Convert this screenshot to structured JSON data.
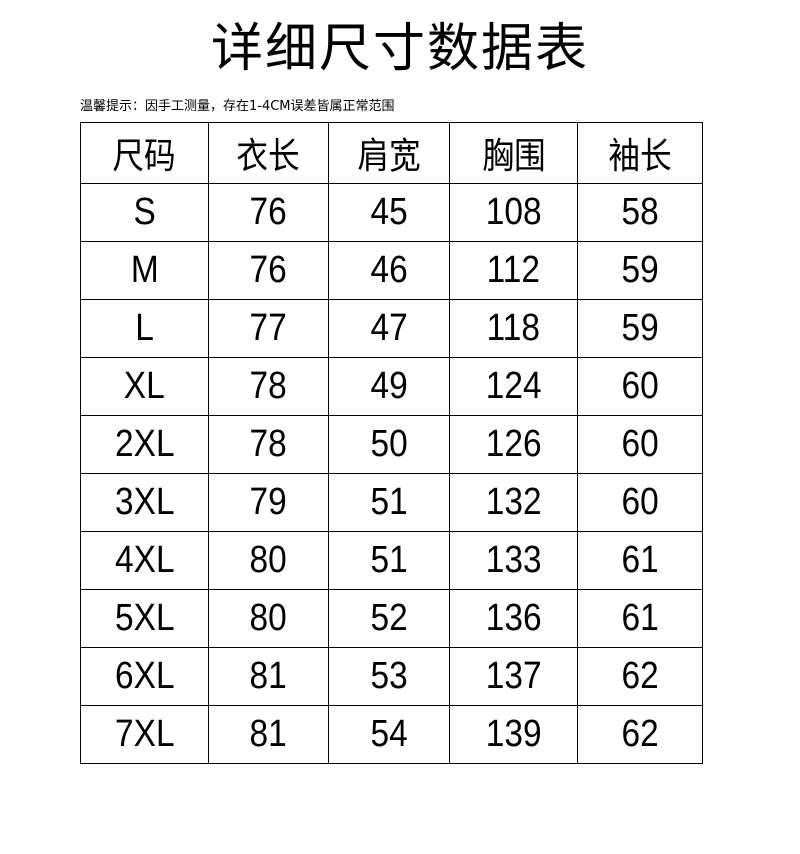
{
  "title": "详细尺寸数据表",
  "note": "温馨提示：因手工测量，存在1-4CM误差皆属正常范围",
  "table": {
    "headers": [
      "尺码",
      "衣长",
      "肩宽",
      "胸围",
      "袖长"
    ],
    "rows": [
      [
        "S",
        "76",
        "45",
        "108",
        "58"
      ],
      [
        "M",
        "76",
        "46",
        "112",
        "59"
      ],
      [
        "L",
        "77",
        "47",
        "118",
        "59"
      ],
      [
        "XL",
        "78",
        "49",
        "124",
        "60"
      ],
      [
        "2XL",
        "78",
        "50",
        "126",
        "60"
      ],
      [
        "3XL",
        "79",
        "51",
        "132",
        "60"
      ],
      [
        "4XL",
        "80",
        "51",
        "133",
        "61"
      ],
      [
        "5XL",
        "80",
        "52",
        "136",
        "61"
      ],
      [
        "6XL",
        "81",
        "53",
        "137",
        "62"
      ],
      [
        "7XL",
        "81",
        "54",
        "139",
        "62"
      ]
    ]
  }
}
